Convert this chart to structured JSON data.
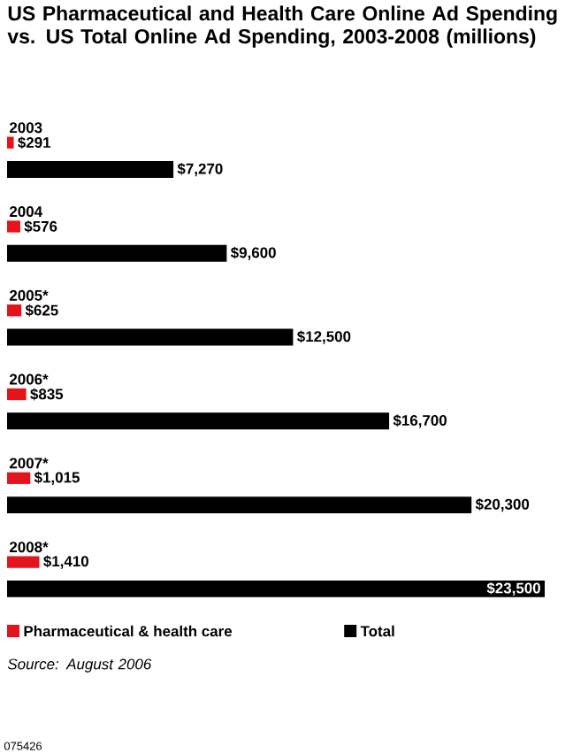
{
  "chart_data": {
    "type": "bar",
    "orientation": "horizontal",
    "title": "US Pharmaceutical and Health Care Online Ad Spending vs. US Total Online Ad Spending, 2003-2008 (millions)",
    "categories": [
      "2003",
      "2004",
      "2005*",
      "2006*",
      "2007*",
      "2008*"
    ],
    "series": [
      {
        "name": "Pharmaceutical & health care",
        "color": "#e3141b",
        "values": [
          291,
          576,
          625,
          835,
          1015,
          1410
        ],
        "value_labels": [
          "$291",
          "$576",
          "$625",
          "$835",
          "$1,015",
          "$1,410"
        ]
      },
      {
        "name": "Total",
        "color": "#000000",
        "values": [
          7270,
          9600,
          12500,
          16700,
          20300,
          23500
        ],
        "value_labels": [
          "$7,270",
          "$9,600",
          "$12,500",
          "$16,700",
          "$20,300",
          "$23,500"
        ]
      }
    ],
    "legend": "bottom",
    "annotations": [
      "Source: August 2006",
      "075426"
    ]
  }
}
